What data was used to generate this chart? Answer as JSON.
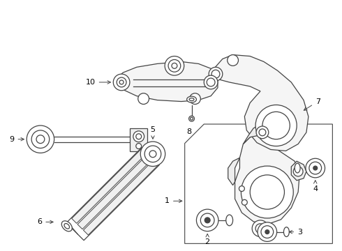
{
  "bg_color": "#ffffff",
  "line_color": "#444444",
  "text_color": "#000000",
  "lw": 0.9,
  "figsize": [
    4.9,
    3.6
  ],
  "dpi": 100
}
